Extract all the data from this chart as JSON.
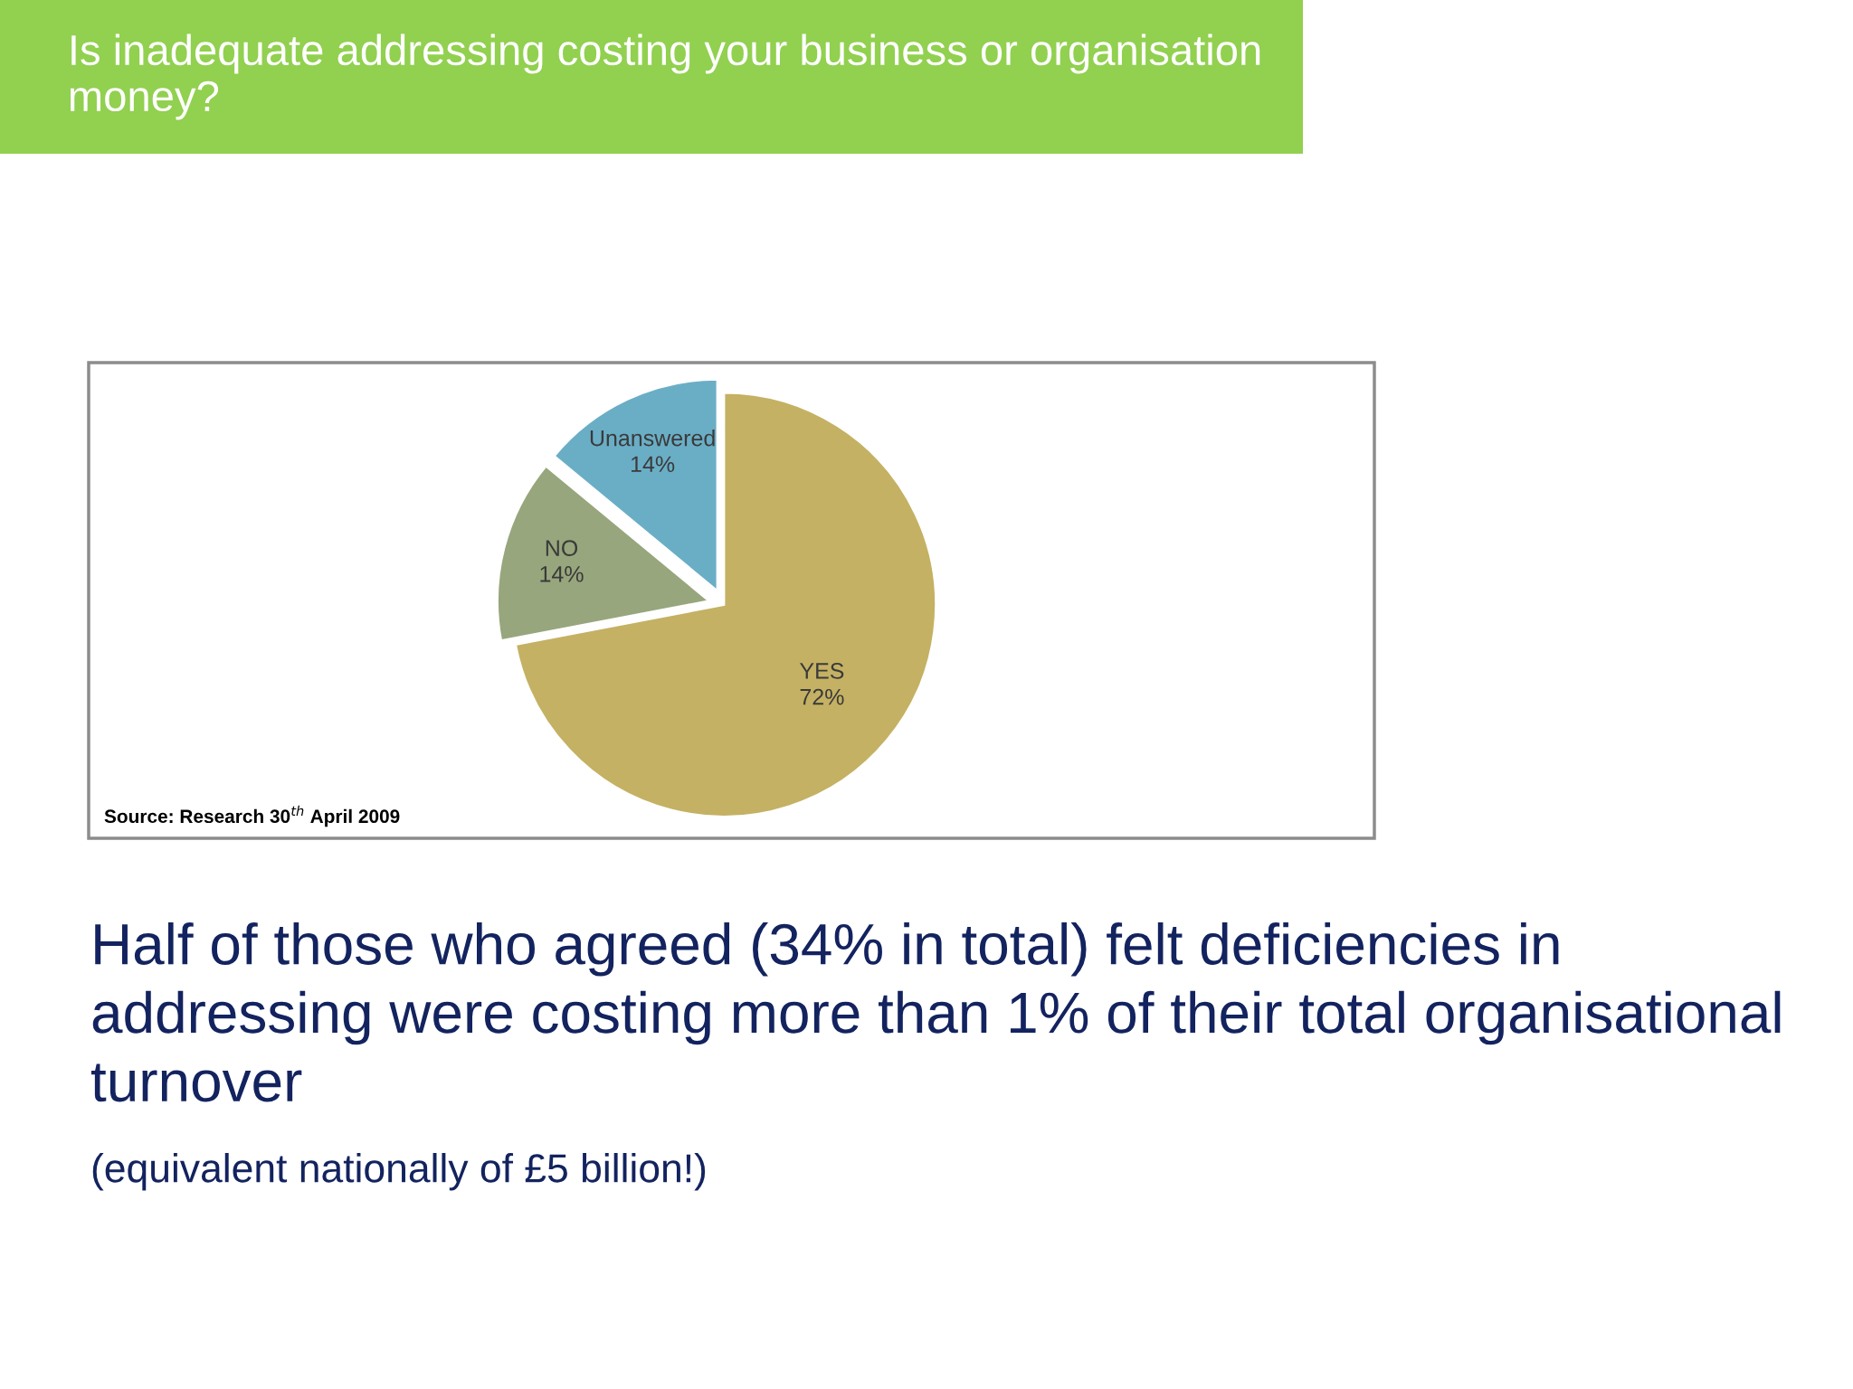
{
  "chart_data": {
    "type": "pie",
    "title": "Is inadequate addressing costing your business or organisation money?",
    "categories": [
      "YES",
      "NO",
      "Unanswered"
    ],
    "values": [
      72,
      14,
      14
    ],
    "value_labels": [
      "72%",
      "14%",
      "14%"
    ],
    "colors": [
      "#c4b163",
      "#97a67c",
      "#6aaec6"
    ],
    "annotations": [
      "Source: Research 30$^{th}$ April 2009",
      "Half of those who agreed (34% in total) felt deficiencies in addressing were costing more than 1% of their total organisational turnover",
      "(equivalent nationally of £5 billion!)"
    ]
  }
}
